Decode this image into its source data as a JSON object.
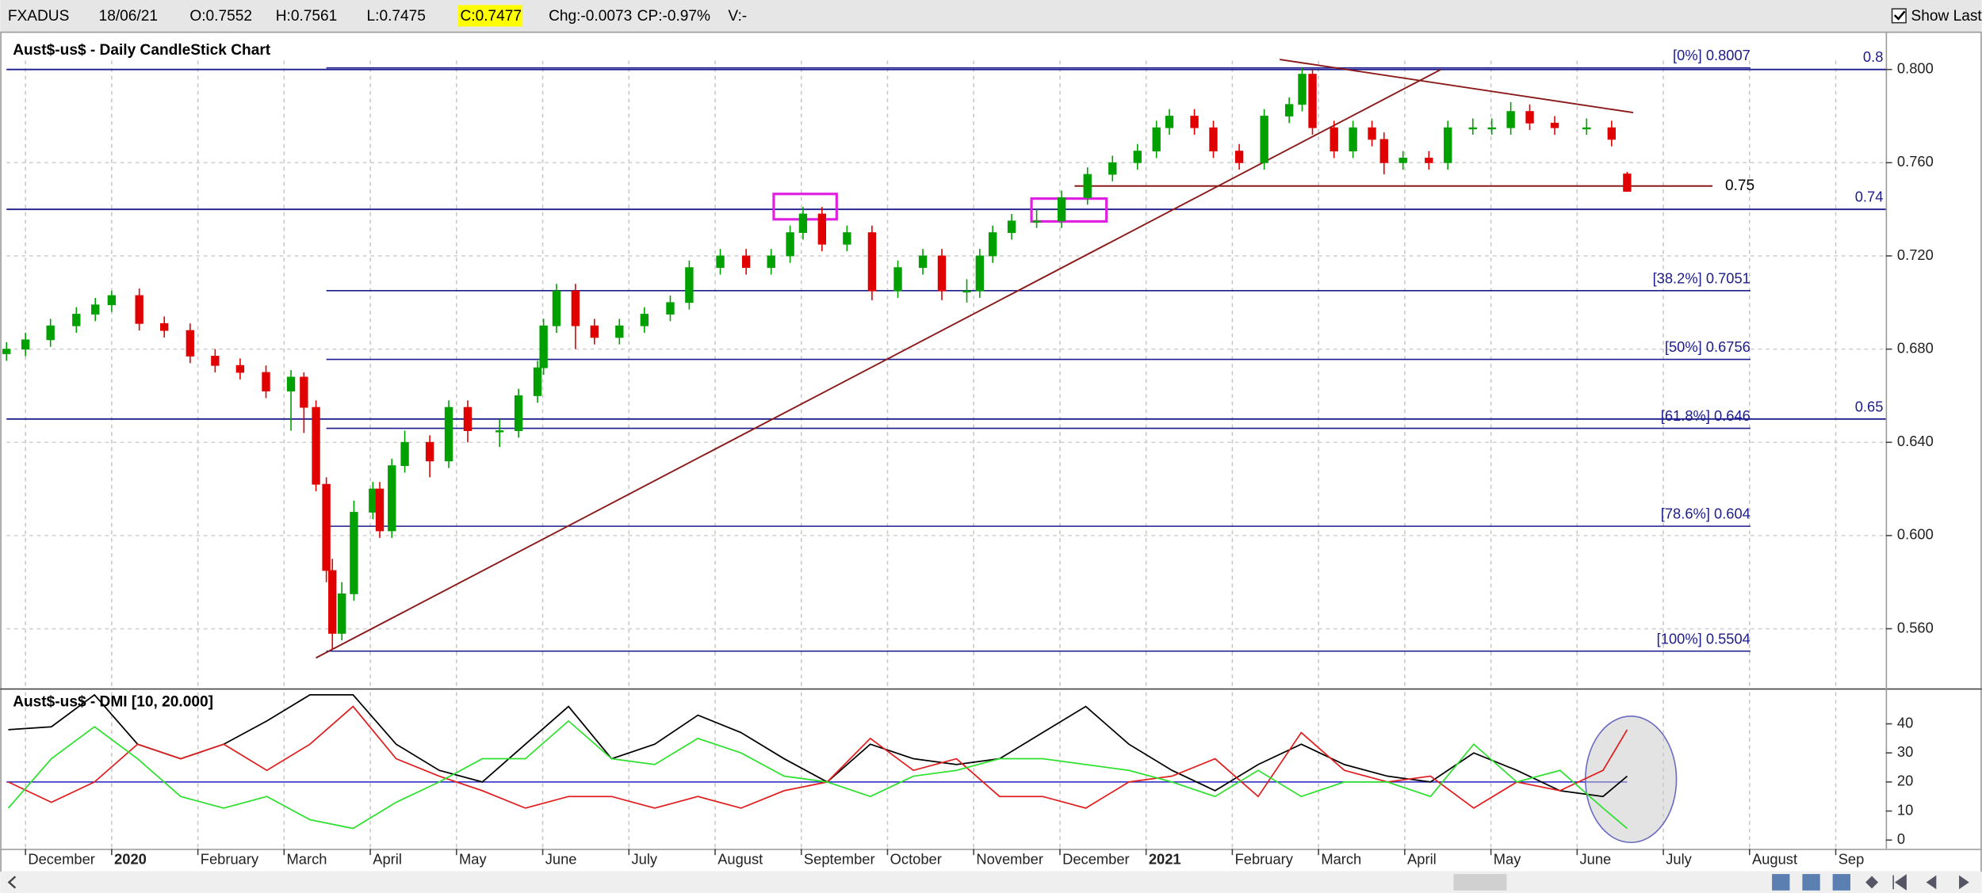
{
  "header": {
    "symbol": "FXADUS",
    "date": "18/06/21",
    "open": "O:0.7552",
    "high": "H:0.7561",
    "low": "L:0.7475",
    "close": "C:0.7477",
    "change": "Chg:-0.0073",
    "change_pct": "CP:-0.97%",
    "volume": "V:-",
    "show_last": "Show Last"
  },
  "chart_data": [
    {
      "type": "candlestick",
      "title": "Aust$-us$ - Daily CandleStick Chart",
      "up_color": "#00a000",
      "down_color": "#e00000",
      "grid": true,
      "xlim": [
        -0.22,
        21.58
      ],
      "ylim": [
        0.5355,
        0.8038
      ],
      "xticks": [
        {
          "value": 0,
          "label": "December"
        },
        {
          "value": 1,
          "label": "2020"
        },
        {
          "value": 2,
          "label": "February"
        },
        {
          "value": 3,
          "label": "March"
        },
        {
          "value": 4,
          "label": "April"
        },
        {
          "value": 5,
          "label": "May"
        },
        {
          "value": 6,
          "label": "June"
        },
        {
          "value": 7,
          "label": "July"
        },
        {
          "value": 8,
          "label": "August"
        },
        {
          "value": 9,
          "label": "September"
        },
        {
          "value": 10,
          "label": "October"
        },
        {
          "value": 11,
          "label": "November"
        },
        {
          "value": 12,
          "label": "December"
        },
        {
          "value": 13,
          "label": "2021"
        },
        {
          "value": 14,
          "label": "February"
        },
        {
          "value": 15,
          "label": "March"
        },
        {
          "value": 16,
          "label": "April"
        },
        {
          "value": 17,
          "label": "May"
        },
        {
          "value": 18,
          "label": "June"
        },
        {
          "value": 19,
          "label": "July"
        },
        {
          "value": 20,
          "label": "August"
        },
        {
          "value": 21,
          "label": "Sep"
        }
      ],
      "yticks": [
        {
          "value": 0.8,
          "label": "0.800"
        },
        {
          "value": 0.76,
          "label": "0.760"
        },
        {
          "value": 0.72,
          "label": "0.720"
        },
        {
          "value": 0.68,
          "label": "0.680"
        },
        {
          "value": 0.64,
          "label": "0.640"
        },
        {
          "value": 0.6,
          "label": "0.600"
        },
        {
          "value": 0.56,
          "label": "0.560"
        }
      ],
      "x": [
        -0.22,
        0,
        0.29,
        0.59,
        0.81,
        1.0,
        1.32,
        1.61,
        1.91,
        2.2,
        2.49,
        2.79,
        3.08,
        3.23,
        3.37,
        3.49,
        3.56,
        3.67,
        3.81,
        4.03,
        4.11,
        4.25,
        4.4,
        4.69,
        4.91,
        5.13,
        5.5,
        5.72,
        5.94,
        6.01,
        6.16,
        6.38,
        6.6,
        6.89,
        7.18,
        7.48,
        7.7,
        8.06,
        8.36,
        8.65,
        8.87,
        9.02,
        9.24,
        9.53,
        9.82,
        10.12,
        10.41,
        10.63,
        10.92,
        11.07,
        11.22,
        11.44,
        11.73,
        12.02,
        12.32,
        12.61,
        12.9,
        13.12,
        13.27,
        13.56,
        13.78,
        14.08,
        14.37,
        14.66,
        14.81,
        14.93,
        15.18,
        15.4,
        15.62,
        15.76,
        15.98,
        16.28,
        16.5,
        16.79,
        17.01,
        17.23,
        17.45,
        17.74,
        18.11,
        18.4,
        18.58
      ],
      "open": [
        0.678,
        0.68,
        0.684,
        0.69,
        0.695,
        0.699,
        0.703,
        0.691,
        0.688,
        0.677,
        0.673,
        0.67,
        0.662,
        0.668,
        0.655,
        0.622,
        0.585,
        0.558,
        0.575,
        0.61,
        0.62,
        0.602,
        0.63,
        0.64,
        0.632,
        0.655,
        0.645,
        0.645,
        0.66,
        0.672,
        0.69,
        0.705,
        0.69,
        0.685,
        0.69,
        0.695,
        0.7,
        0.715,
        0.72,
        0.715,
        0.72,
        0.73,
        0.738,
        0.725,
        0.73,
        0.705,
        0.715,
        0.72,
        0.705,
        0.705,
        0.72,
        0.73,
        0.735,
        0.735,
        0.745,
        0.755,
        0.76,
        0.765,
        0.775,
        0.78,
        0.775,
        0.765,
        0.76,
        0.78,
        0.785,
        0.798,
        0.775,
        0.765,
        0.775,
        0.77,
        0.76,
        0.762,
        0.76,
        0.775,
        0.775,
        0.775,
        0.782,
        0.777,
        0.775,
        0.775,
        0.7552
      ],
      "high": [
        0.683,
        0.687,
        0.693,
        0.698,
        0.702,
        0.705,
        0.706,
        0.694,
        0.691,
        0.68,
        0.676,
        0.673,
        0.671,
        0.67,
        0.658,
        0.625,
        0.59,
        0.58,
        0.615,
        0.623,
        0.623,
        0.633,
        0.645,
        0.643,
        0.658,
        0.658,
        0.65,
        0.663,
        0.675,
        0.693,
        0.708,
        0.708,
        0.693,
        0.693,
        0.698,
        0.703,
        0.718,
        0.723,
        0.723,
        0.723,
        0.733,
        0.741,
        0.741,
        0.733,
        0.733,
        0.718,
        0.723,
        0.723,
        0.71,
        0.723,
        0.733,
        0.738,
        0.74,
        0.748,
        0.758,
        0.763,
        0.768,
        0.778,
        0.783,
        0.783,
        0.778,
        0.768,
        0.783,
        0.788,
        0.8007,
        0.8,
        0.778,
        0.778,
        0.778,
        0.773,
        0.765,
        0.765,
        0.778,
        0.779,
        0.779,
        0.786,
        0.785,
        0.78,
        0.779,
        0.778,
        0.7561
      ],
      "low": [
        0.675,
        0.677,
        0.681,
        0.687,
        0.692,
        0.696,
        0.688,
        0.685,
        0.674,
        0.67,
        0.667,
        0.659,
        0.645,
        0.644,
        0.619,
        0.58,
        0.551,
        0.555,
        0.572,
        0.607,
        0.599,
        0.599,
        0.627,
        0.625,
        0.629,
        0.64,
        0.638,
        0.642,
        0.657,
        0.669,
        0.687,
        0.68,
        0.682,
        0.682,
        0.687,
        0.692,
        0.697,
        0.712,
        0.712,
        0.712,
        0.717,
        0.727,
        0.722,
        0.722,
        0.701,
        0.702,
        0.712,
        0.701,
        0.7,
        0.702,
        0.717,
        0.727,
        0.732,
        0.732,
        0.742,
        0.752,
        0.757,
        0.762,
        0.772,
        0.772,
        0.762,
        0.757,
        0.757,
        0.777,
        0.782,
        0.772,
        0.762,
        0.762,
        0.767,
        0.755,
        0.757,
        0.757,
        0.757,
        0.772,
        0.772,
        0.772,
        0.774,
        0.772,
        0.772,
        0.767,
        0.7475
      ],
      "close": [
        0.68,
        0.684,
        0.69,
        0.695,
        0.699,
        0.703,
        0.691,
        0.688,
        0.677,
        0.673,
        0.67,
        0.662,
        0.668,
        0.655,
        0.622,
        0.585,
        0.558,
        0.575,
        0.61,
        0.62,
        0.602,
        0.63,
        0.64,
        0.632,
        0.655,
        0.645,
        0.645,
        0.66,
        0.672,
        0.69,
        0.705,
        0.69,
        0.685,
        0.69,
        0.695,
        0.7,
        0.715,
        0.72,
        0.715,
        0.72,
        0.73,
        0.738,
        0.725,
        0.73,
        0.705,
        0.715,
        0.72,
        0.705,
        0.705,
        0.72,
        0.73,
        0.735,
        0.735,
        0.745,
        0.755,
        0.76,
        0.765,
        0.775,
        0.78,
        0.775,
        0.765,
        0.76,
        0.78,
        0.785,
        0.798,
        0.775,
        0.765,
        0.775,
        0.77,
        0.76,
        0.762,
        0.76,
        0.775,
        0.775,
        0.775,
        0.782,
        0.777,
        0.775,
        0.775,
        0.77,
        0.7477
      ],
      "hlines": [
        0.8,
        0.74,
        0.65
      ],
      "hline_color": "#1c1c8c",
      "fib_x": [
        3.49,
        20.01
      ],
      "fib_levels": [
        {
          "value": 0.8007,
          "label": "[0%] 0.8007"
        },
        {
          "value": 0.7051,
          "label": "[38.2%] 0.7051"
        },
        {
          "value": 0.6756,
          "label": "[50%] 0.6756"
        },
        {
          "value": 0.646,
          "label": "[61.8%] 0.646"
        },
        {
          "value": 0.604,
          "label": "[78.6%] 0.604"
        },
        {
          "value": 0.5504,
          "label": "[100%] 0.5504"
        }
      ],
      "support": {
        "value": 0.75,
        "x": [
          12.17,
          19.57
        ],
        "color": "#8b1a1a"
      },
      "trendlines": [
        {
          "x": [
            3.37,
            16.42
          ],
          "y": [
            0.5475,
            0.8
          ]
        },
        {
          "x": [
            14.55,
            18.65
          ],
          "y": [
            0.8043,
            0.7815
          ]
        }
      ],
      "trend_color": "#8b1a1a",
      "boxes": [
        {
          "x": [
            8.68,
            9.41
          ],
          "y": [
            0.7357,
            0.7466
          ]
        },
        {
          "x": [
            11.67,
            12.54
          ],
          "y": [
            0.7348,
            0.7446
          ]
        }
      ],
      "box_color": "#e020e0"
    },
    {
      "type": "line",
      "title": "Aust$-us$ - DMI [10, 20.000]",
      "xlim": [
        -0.22,
        21.58
      ],
      "ylim": [
        -3,
        50.9
      ],
      "yticks": [
        0,
        10,
        20,
        30,
        40
      ],
      "level": 20,
      "level_color": "#2020c0",
      "x": [
        -0.2,
        0.3,
        0.8,
        1.3,
        1.8,
        2.3,
        2.8,
        3.3,
        3.8,
        4.3,
        4.8,
        5.3,
        5.8,
        6.3,
        6.8,
        7.3,
        7.8,
        8.3,
        8.8,
        9.3,
        9.8,
        10.3,
        10.8,
        11.3,
        11.8,
        12.3,
        12.8,
        13.3,
        13.8,
        14.3,
        14.8,
        15.3,
        15.8,
        16.3,
        16.8,
        17.3,
        17.8,
        18.3,
        18.58
      ],
      "series": [
        {
          "color": "#000000",
          "values": [
            38,
            39,
            50,
            33,
            28,
            33,
            41,
            50,
            50,
            33,
            24,
            20,
            33,
            46,
            28,
            33,
            43,
            37,
            28,
            20,
            33,
            28,
            26,
            28,
            37,
            46,
            33,
            24,
            17,
            26,
            33,
            26,
            22,
            20,
            30,
            24,
            17,
            15,
            22
          ]
        },
        {
          "color": "#e02020",
          "values": [
            20,
            13,
            20,
            33,
            28,
            33,
            24,
            33,
            46,
            28,
            22,
            17,
            11,
            15,
            15,
            11,
            15,
            11,
            17,
            20,
            35,
            24,
            28,
            15,
            15,
            11,
            20,
            22,
            28,
            15,
            37,
            24,
            20,
            22,
            11,
            20,
            17,
            24,
            38
          ]
        },
        {
          "color": "#30e030",
          "values": [
            11,
            28,
            39,
            28,
            15,
            11,
            15,
            7,
            4,
            13,
            20,
            28,
            28,
            41,
            28,
            26,
            35,
            30,
            22,
            20,
            15,
            22,
            24,
            28,
            28,
            26,
            24,
            20,
            15,
            24,
            15,
            20,
            20,
            15,
            33,
            20,
            24,
            11,
            4
          ]
        }
      ]
    }
  ]
}
